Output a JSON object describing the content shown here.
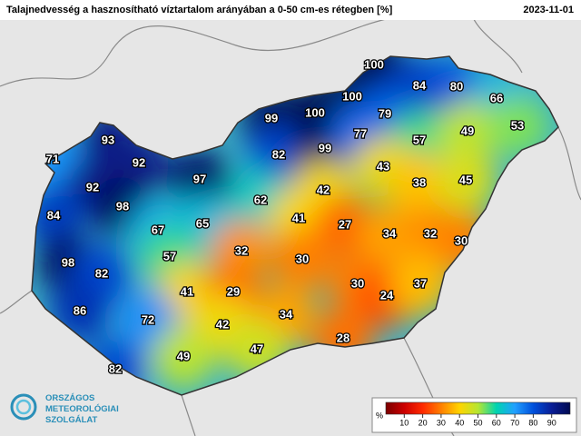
{
  "header": {
    "title": "Talajnedvesség a hasznosítható víztartalom arányában a 0-50 cm-es rétegben [%]",
    "date": "2023-11-01"
  },
  "stations": [
    100,
    84,
    80,
    66,
    99,
    100,
    100,
    79,
    57,
    49,
    53,
    93,
    92,
    82,
    99,
    77,
    43,
    71,
    92,
    97,
    38,
    45,
    98,
    62,
    42,
    84,
    67,
    65,
    41,
    27,
    34,
    32,
    30,
    98,
    57,
    32,
    30,
    82,
    41,
    29,
    30,
    24,
    37,
    86,
    72,
    42,
    34,
    28,
    47,
    49,
    82
  ],
  "colorbar": {
    "unit": "%",
    "range": [
      0,
      100
    ],
    "ticks": [
      10,
      20,
      30,
      40,
      50,
      60,
      70,
      80,
      90
    ],
    "colors": [
      "#7a0000",
      "#cc0000",
      "#ff2a00",
      "#ff8000",
      "#ffd400",
      "#b6e632",
      "#00d4b0",
      "#22a0ff",
      "#0050dc",
      "#0a1e96",
      "#000a50"
    ]
  },
  "logo": {
    "lines": [
      "ORSZÁGOS",
      "METEOROLÓGIAI",
      "SZOLGÁLAT"
    ]
  }
}
